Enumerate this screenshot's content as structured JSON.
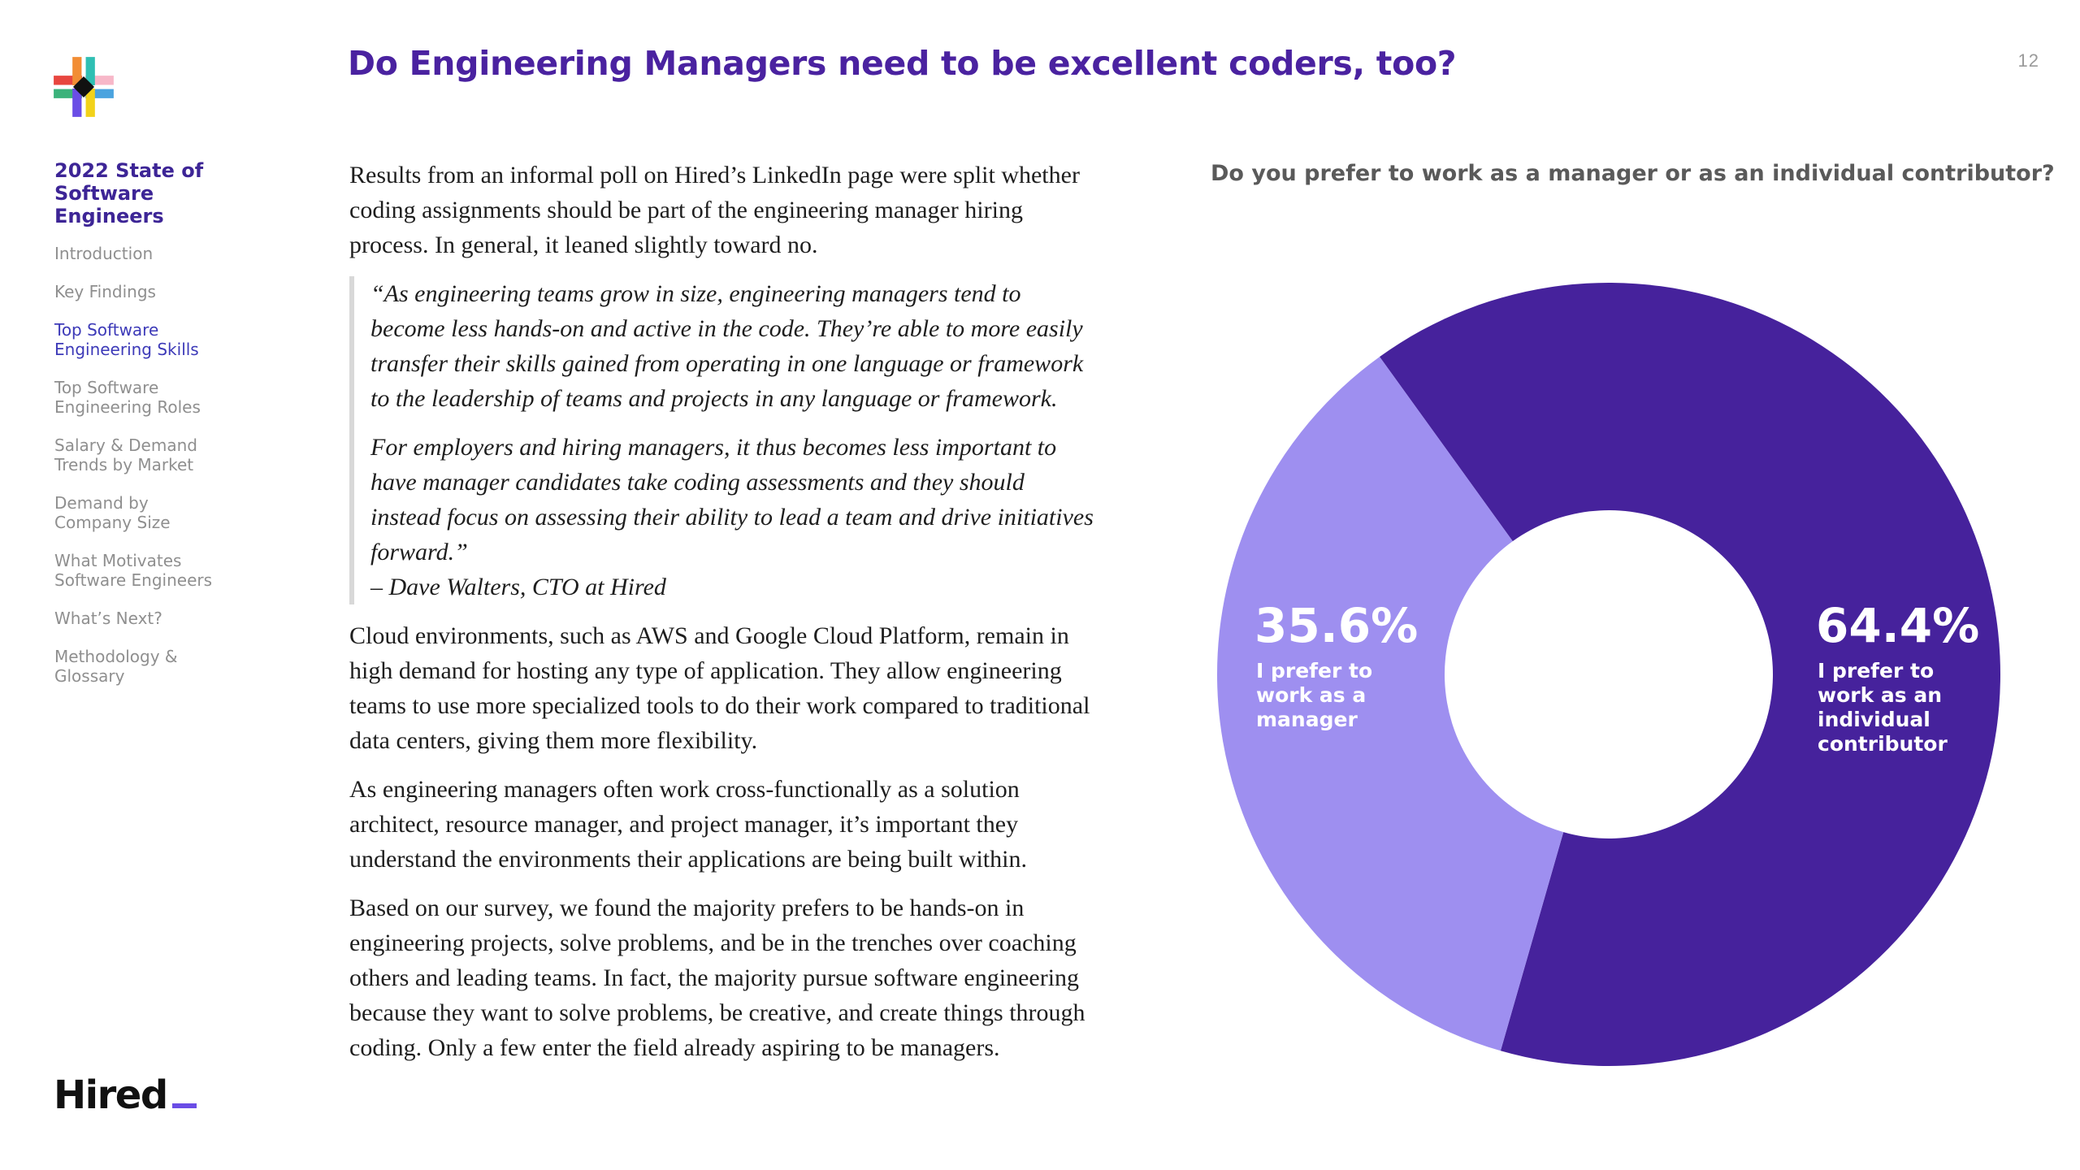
{
  "page_number": "12",
  "title": "Do Engineering Managers need to be excellent coders, too?",
  "sidebar": {
    "report_title": "2022 State of Software Engineers",
    "items": [
      {
        "label": "Introduction",
        "active": false
      },
      {
        "label": "Key Findings",
        "active": false
      },
      {
        "label": "Top Software Engineering Skills",
        "active": true
      },
      {
        "label": "Top Software Engineering Roles",
        "active": false
      },
      {
        "label": "Salary & Demand Trends by Market",
        "active": false
      },
      {
        "label": "Demand by Company Size",
        "active": false
      },
      {
        "label": "What Motivates Software Engineers",
        "active": false
      },
      {
        "label": "What’s Next?",
        "active": false
      },
      {
        "label": "Methodology & Glossary",
        "active": false
      }
    ]
  },
  "brand": {
    "logo_text": "Hired"
  },
  "body": {
    "intro": "Results from an informal poll on Hired’s LinkedIn page were split whether coding assignments should be part of the engineering manager hiring process. In general, it leaned slightly toward no.",
    "quote_p1": "“As engineering teams grow in size, engineering managers tend to become less hands-on and active in the code. They’re able to more easily transfer their skills gained from operating in one language or framework to the leadership of teams and projects in any language or framework.",
    "quote_p2": "For employers and hiring managers, it thus becomes less important to have manager candidates take coding assessments and they should instead focus on assessing their ability to lead a team and drive initiatives forward.”",
    "quote_attribution": "– Dave Walters, CTO at Hired",
    "p_cloud": "Cloud environments, such as AWS and Google Cloud Platform, remain in high demand for hosting any type of application. They allow engineering teams to use more specialized tools to do their work compared to traditional data centers, giving them more flexibility.",
    "p_managers": "As engineering managers often work cross-functionally as a solution architect, resource manager, and project manager, it’s important they understand the environments their applications are being built within.",
    "p_survey": "Based on our survey, we found the majority prefers to be hands-on in engineering projects, solve problems, and be in the trenches over coaching others and leading teams. In fact, the majority pursue software engineering because they want to solve problems, be creative, and create things through coding. Only a few enter the field already aspiring to be managers."
  },
  "chart_data": {
    "type": "pie",
    "donut": true,
    "title": "Do you prefer to work as a manager or as an individual contributor?",
    "slices": [
      {
        "label": "I prefer to work as an individual contributor",
        "value": 64.4,
        "value_label": "64.4%",
        "label_lines": [
          "I prefer to",
          "work as an",
          "individual",
          "contributor"
        ],
        "color": "#46229c"
      },
      {
        "label": "I prefer to work as a manager",
        "value": 35.6,
        "value_label": "35.6%",
        "label_lines": [
          "I prefer to",
          "work as a",
          "manager"
        ],
        "color": "#9e8ff0"
      }
    ]
  },
  "colors": {
    "title": "#4a22a0",
    "accent": "#6a4de6",
    "nav_active": "#3d3ab8",
    "nav_inactive": "#8f8f8f"
  }
}
